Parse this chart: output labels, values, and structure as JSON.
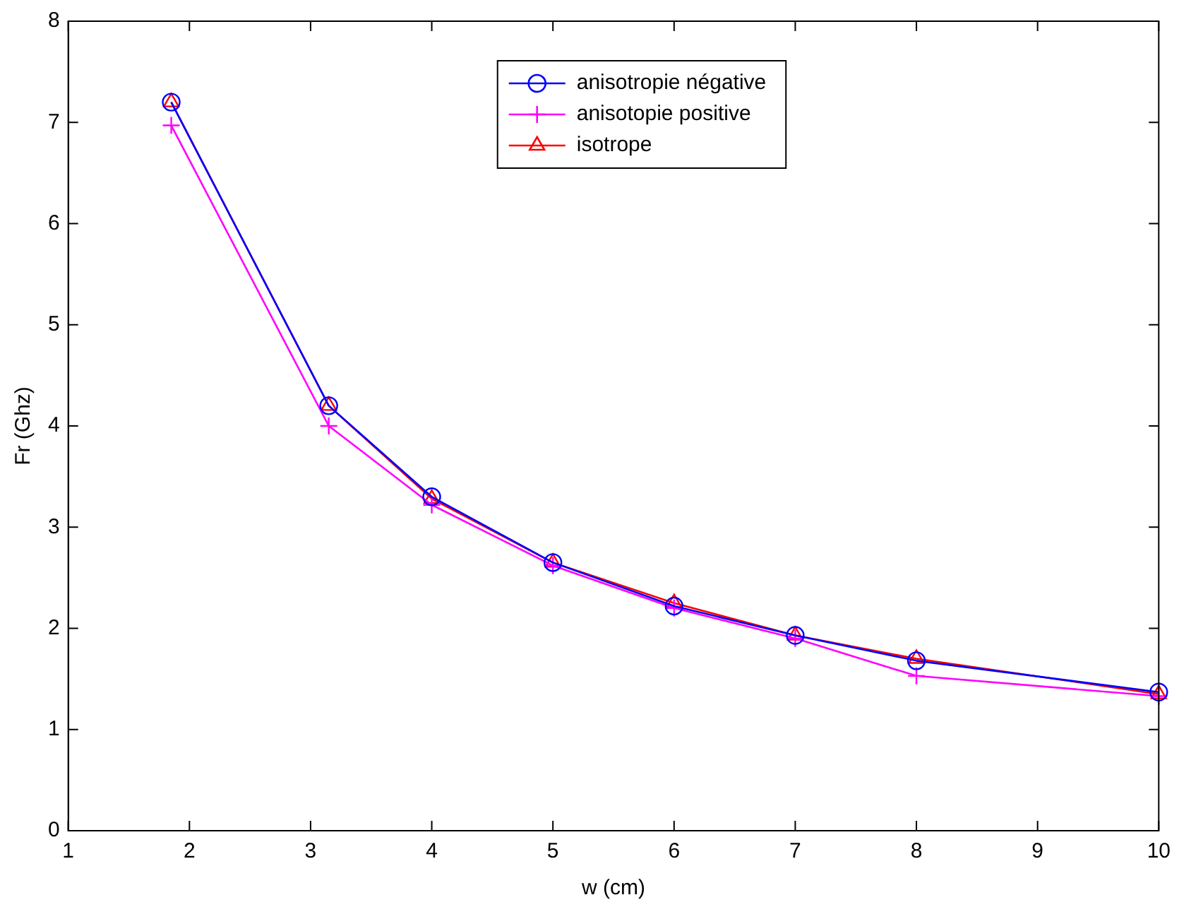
{
  "chart_data": {
    "type": "line",
    "xlabel": "w (cm)",
    "ylabel": "Fr (Ghz)",
    "x": [
      1.85,
      3.15,
      4,
      5,
      6,
      7,
      8,
      10
    ],
    "series": [
      {
        "name": "anisotropie négative",
        "color": "#0000ff",
        "marker": "circle",
        "values": [
          7.2,
          4.2,
          3.3,
          2.65,
          2.22,
          1.93,
          1.68,
          1.37
        ]
      },
      {
        "name": "anisotopie positive",
        "color": "#ff00ff",
        "marker": "cross",
        "values": [
          6.97,
          4.0,
          3.22,
          2.62,
          2.2,
          1.9,
          1.53,
          1.33
        ]
      },
      {
        "name": "isotrope",
        "color": "#ff0000",
        "marker": "triangle",
        "values": [
          7.2,
          4.2,
          3.28,
          2.65,
          2.25,
          1.93,
          1.7,
          1.35
        ]
      }
    ],
    "xlim": [
      1,
      10
    ],
    "xticks": [
      1,
      2,
      3,
      4,
      5,
      6,
      7,
      8,
      9,
      10
    ],
    "ylim": [
      0,
      8
    ],
    "yticks": [
      0,
      1,
      2,
      3,
      4,
      5,
      6,
      7,
      8
    ],
    "grid": false,
    "legend": "top",
    "line_style": "solid"
  }
}
